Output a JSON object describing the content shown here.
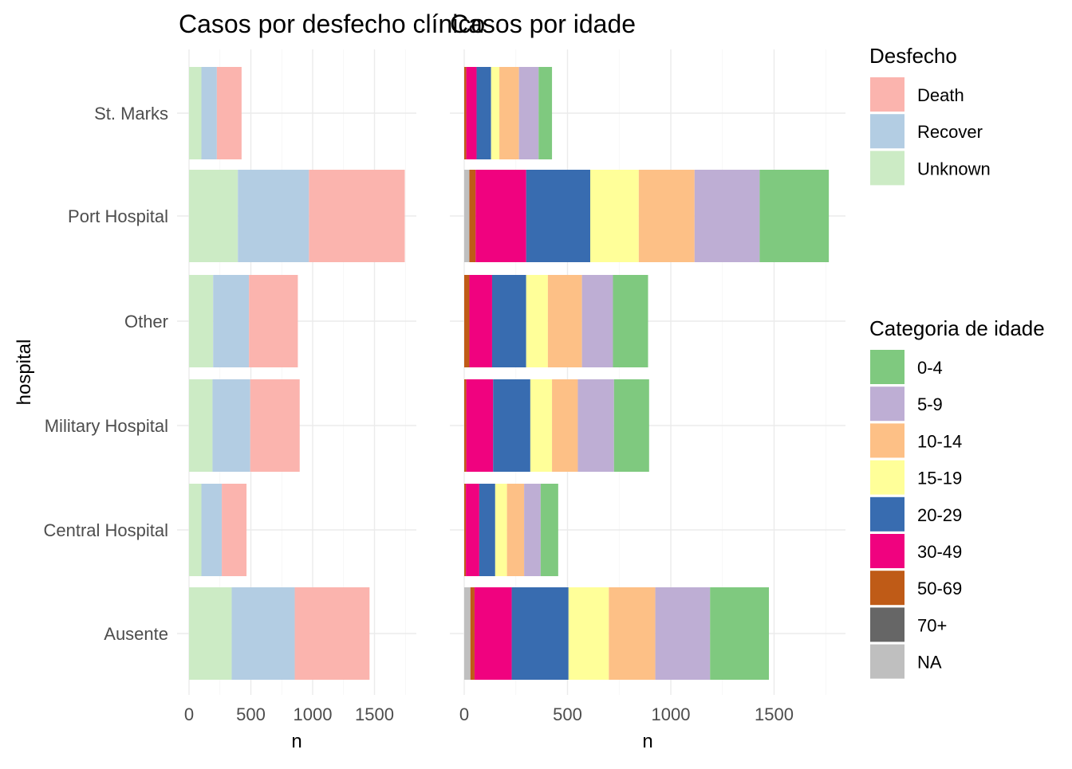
{
  "chart_data": [
    {
      "type": "bar",
      "orientation": "horizontal",
      "stacked": true,
      "title": "Casos por desfecho clínico",
      "xlabel": "n",
      "ylabel": "hospital",
      "xlim": [
        0,
        1750
      ],
      "x_ticks": [
        0,
        500,
        1000,
        1500
      ],
      "categories": [
        "St. Marks",
        "Port Hospital",
        "Other",
        "Military Hospital",
        "Central Hospital",
        "Ausente"
      ],
      "grid": true,
      "series": [
        {
          "name": "Unknown",
          "color": "#ccebc5",
          "values": [
            100,
            395,
            195,
            190,
            100,
            345
          ]
        },
        {
          "name": "Recover",
          "color": "#b3cde3",
          "values": [
            125,
            575,
            290,
            305,
            165,
            510
          ]
        },
        {
          "name": "Death",
          "color": "#fbb4ae",
          "values": [
            200,
            775,
            395,
            400,
            200,
            605
          ]
        }
      ]
    },
    {
      "type": "bar",
      "orientation": "horizontal",
      "stacked": true,
      "title": "Casos por idade",
      "xlabel": "n",
      "ylabel": "",
      "xlim": [
        0,
        1850
      ],
      "x_ticks": [
        0,
        500,
        1000,
        1500
      ],
      "categories": [
        "St. Marks",
        "Port Hospital",
        "Other",
        "Military Hospital",
        "Central Hospital",
        "Ausente"
      ],
      "grid": true,
      "series": [
        {
          "name": "NA",
          "color": "#bfbfbf",
          "values": [
            0,
            25,
            0,
            0,
            0,
            30
          ]
        },
        {
          "name": "70+",
          "color": "#666666",
          "values": [
            0,
            0,
            0,
            0,
            0,
            0
          ]
        },
        {
          "name": "50-69",
          "color": "#bf5b17",
          "values": [
            10,
            30,
            25,
            10,
            8,
            20
          ]
        },
        {
          "name": "30-49",
          "color": "#f0027f",
          "values": [
            50,
            245,
            110,
            130,
            65,
            180
          ]
        },
        {
          "name": "20-29",
          "color": "#386cb0",
          "values": [
            70,
            310,
            165,
            180,
            77,
            275
          ]
        },
        {
          "name": "15-19",
          "color": "#ffff99",
          "values": [
            40,
            235,
            105,
            105,
            57,
            195
          ]
        },
        {
          "name": "10-14",
          "color": "#fdc086",
          "values": [
            95,
            270,
            165,
            125,
            83,
            225
          ]
        },
        {
          "name": "5-9",
          "color": "#beaed4",
          "values": [
            95,
            315,
            150,
            175,
            80,
            265
          ]
        },
        {
          "name": "0-4",
          "color": "#7fc97f",
          "values": [
            65,
            335,
            170,
            170,
            85,
            285
          ]
        }
      ]
    }
  ],
  "legends": [
    {
      "title": "Desfecho",
      "items": [
        {
          "label": "Death",
          "color": "#fbb4ae"
        },
        {
          "label": "Recover",
          "color": "#b3cde3"
        },
        {
          "label": "Unknown",
          "color": "#ccebc5"
        }
      ]
    },
    {
      "title": "Categoria de idade",
      "items": [
        {
          "label": "0-4",
          "color": "#7fc97f"
        },
        {
          "label": "5-9",
          "color": "#beaed4"
        },
        {
          "label": "10-14",
          "color": "#fdc086"
        },
        {
          "label": "15-19",
          "color": "#ffff99"
        },
        {
          "label": "20-29",
          "color": "#386cb0"
        },
        {
          "label": "30-49",
          "color": "#f0027f"
        },
        {
          "label": "50-69",
          "color": "#bf5b17"
        },
        {
          "label": "70+",
          "color": "#666666"
        },
        {
          "label": "NA",
          "color": "#bfbfbf"
        }
      ]
    }
  ]
}
